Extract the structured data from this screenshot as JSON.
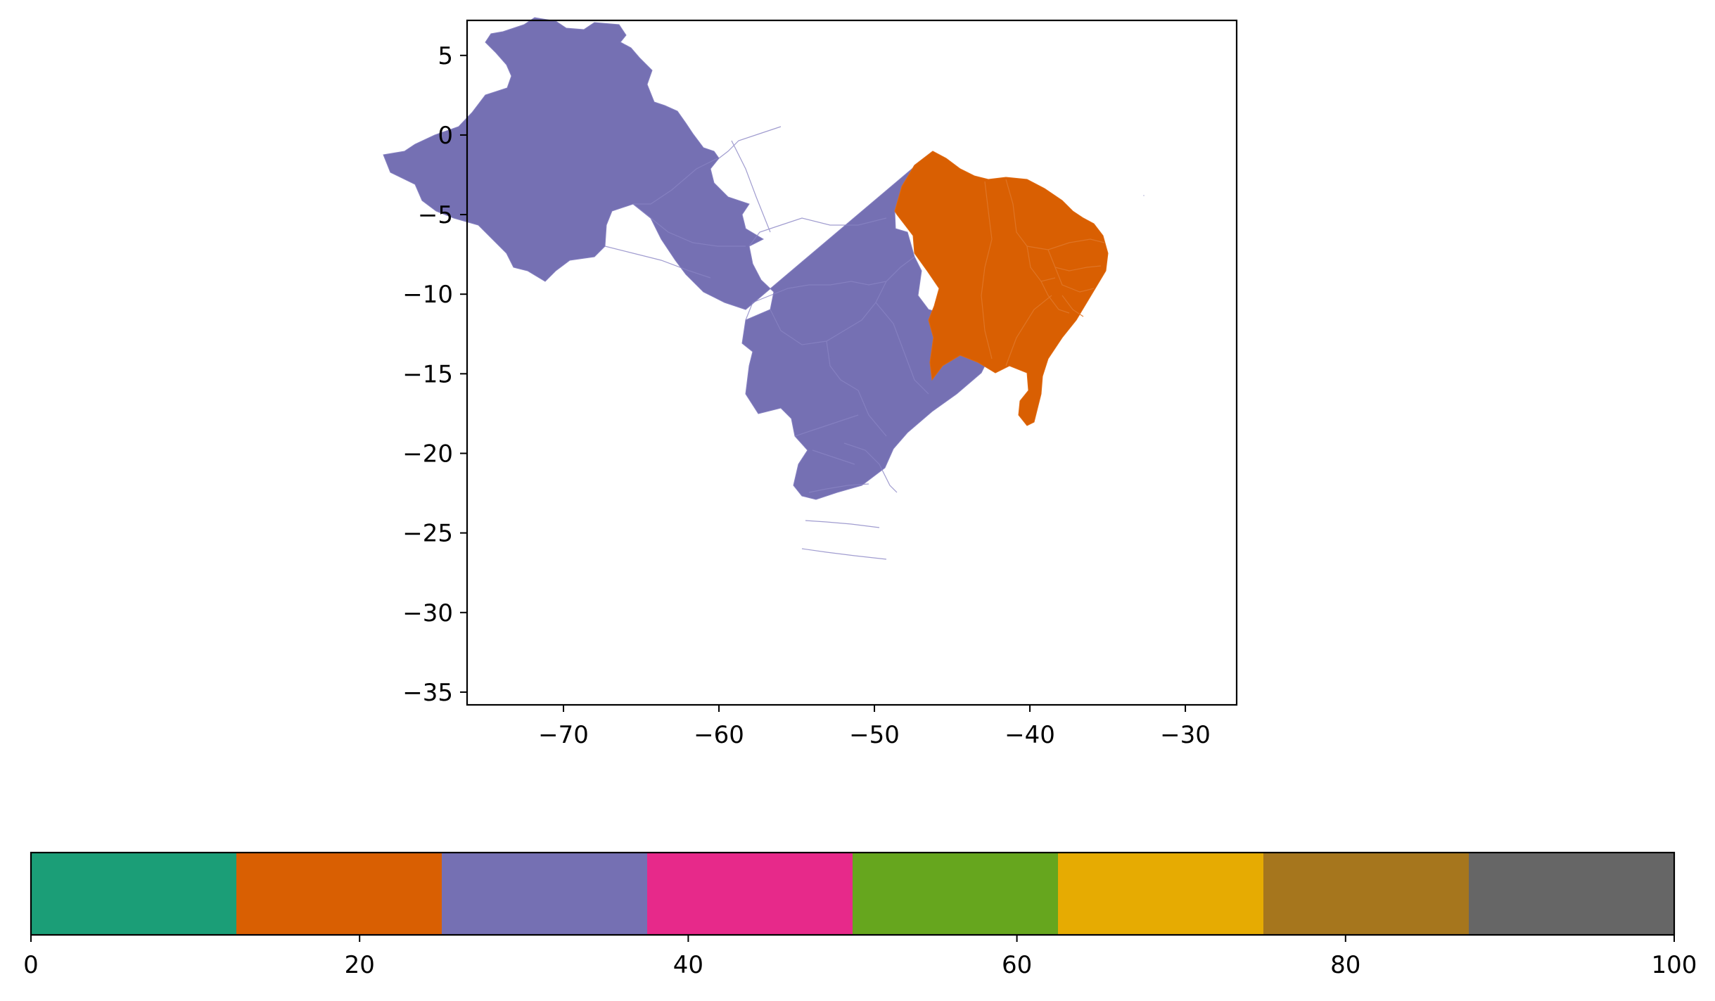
{
  "chart_data": {
    "type": "choropleth",
    "map": {
      "xlim": [
        -76.2,
        -26.7
      ],
      "ylim": [
        -35.8,
        7.2
      ],
      "x_ticks": [
        -70,
        -60,
        -50,
        -40,
        -30
      ],
      "y_ticks": [
        5,
        0,
        -5,
        -10,
        -15,
        -20,
        -25,
        -30,
        -35
      ],
      "x_tick_labels": [
        "−70",
        "−60",
        "−50",
        "−40",
        "−30"
      ],
      "y_tick_labels": [
        "5",
        "0",
        "−5",
        "−10",
        "−15",
        "−20",
        "−25",
        "−30",
        "−35"
      ],
      "regions": [
        {
          "group": "rest-of-country",
          "value": 30,
          "color": "#7570b3"
        },
        {
          "group": "northeast",
          "value": 20,
          "color": "#d95f02"
        }
      ]
    },
    "colorbar": {
      "orientation": "horizontal",
      "range": [
        0,
        100
      ],
      "ticks": [
        0,
        20,
        40,
        60,
        80,
        100
      ],
      "tick_labels": [
        "0",
        "20",
        "40",
        "60",
        "80",
        "100"
      ],
      "colors": [
        "#1b9e77",
        "#d95f02",
        "#7570b3",
        "#e7298a",
        "#66a61e",
        "#e6ab02",
        "#a6761d",
        "#666666"
      ]
    }
  }
}
